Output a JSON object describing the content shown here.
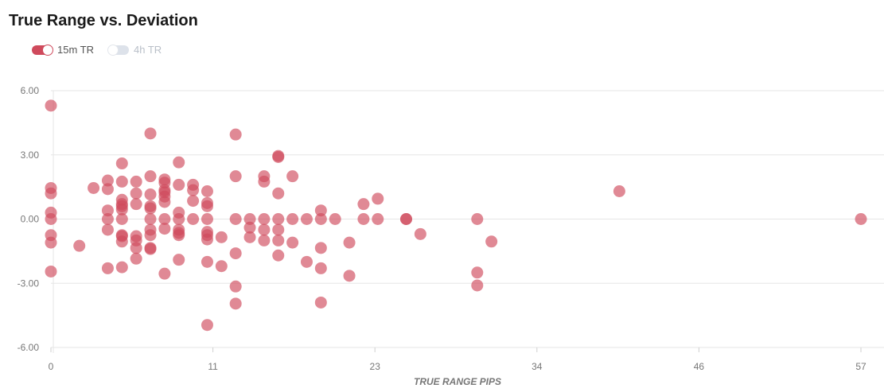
{
  "chart_data": {
    "type": "scatter",
    "title": "True Range vs. Deviation",
    "xlabel": "TRUE RANGE PIPS",
    "ylabel": "",
    "xlim": [
      0,
      57
    ],
    "ylim": [
      -6,
      6
    ],
    "x_ticks": [
      "0",
      "11",
      "23",
      "34",
      "46",
      "57"
    ],
    "x_tick_values": [
      0,
      11.4,
      22.8,
      34.2,
      45.6,
      57
    ],
    "y_ticks": [
      "6.00",
      "3.00",
      "0.00",
      "-3.00",
      "-6.00"
    ],
    "y_tick_values": [
      6,
      3,
      0,
      -3,
      -6
    ],
    "grid": true,
    "legend_position": "top-left",
    "colors": {
      "series_on": "#cf4a5c",
      "series_off": "#dde2ea",
      "grid": "#e6e6e6"
    },
    "series": [
      {
        "name": "15m TR",
        "enabled": true,
        "points": [
          [
            0,
            5.3
          ],
          [
            0,
            1.45
          ],
          [
            0,
            1.2
          ],
          [
            0,
            0.3
          ],
          [
            0,
            0
          ],
          [
            0,
            -0.75
          ],
          [
            0,
            -1.1
          ],
          [
            0,
            -2.45
          ],
          [
            2,
            -1.25
          ],
          [
            3,
            1.45
          ],
          [
            4,
            1.8
          ],
          [
            4,
            1.4
          ],
          [
            4,
            0.4
          ],
          [
            4,
            0
          ],
          [
            4,
            -0.5
          ],
          [
            4,
            -2.3
          ],
          [
            5,
            2.6
          ],
          [
            5,
            1.75
          ],
          [
            5,
            0.9
          ],
          [
            5,
            0.7
          ],
          [
            5,
            0.6
          ],
          [
            5,
            0.45
          ],
          [
            5,
            0
          ],
          [
            5,
            -0.75
          ],
          [
            5,
            -0.8
          ],
          [
            5,
            -1.05
          ],
          [
            5,
            -2.25
          ],
          [
            6,
            1.75
          ],
          [
            6,
            1.2
          ],
          [
            6,
            0.7
          ],
          [
            6,
            -0.8
          ],
          [
            6,
            -1.0
          ],
          [
            6,
            -1.35
          ],
          [
            6,
            -1.85
          ],
          [
            7,
            4.0
          ],
          [
            7,
            2.0
          ],
          [
            7,
            1.15
          ],
          [
            7,
            0.6
          ],
          [
            7,
            0.5
          ],
          [
            7,
            0
          ],
          [
            7,
            -0.5
          ],
          [
            7,
            -0.75
          ],
          [
            7,
            -1.35
          ],
          [
            7,
            -1.4
          ],
          [
            8,
            1.85
          ],
          [
            8,
            1.7
          ],
          [
            8,
            1.35
          ],
          [
            8,
            1.25
          ],
          [
            8,
            1.05
          ],
          [
            8,
            0.8
          ],
          [
            8,
            0
          ],
          [
            8,
            -0.45
          ],
          [
            8,
            -2.55
          ],
          [
            9,
            2.65
          ],
          [
            9,
            1.6
          ],
          [
            9,
            0.3
          ],
          [
            9,
            0
          ],
          [
            9,
            -0.5
          ],
          [
            9,
            -0.65
          ],
          [
            9,
            -0.75
          ],
          [
            9,
            -1.9
          ],
          [
            10,
            1.6
          ],
          [
            10,
            1.35
          ],
          [
            10,
            0.85
          ],
          [
            10,
            0
          ],
          [
            11,
            1.3
          ],
          [
            11,
            0.75
          ],
          [
            11,
            0.6
          ],
          [
            11,
            0
          ],
          [
            11,
            -0.6
          ],
          [
            11,
            -0.75
          ],
          [
            11,
            -0.95
          ],
          [
            11,
            -2.0
          ],
          [
            11,
            -4.95
          ],
          [
            12,
            -0.85
          ],
          [
            12,
            -2.2
          ],
          [
            13,
            3.95
          ],
          [
            13,
            2.0
          ],
          [
            13,
            0
          ],
          [
            13,
            -1.6
          ],
          [
            13,
            -3.15
          ],
          [
            13,
            -3.95
          ],
          [
            14,
            0
          ],
          [
            14,
            -0.4
          ],
          [
            14,
            -0.85
          ],
          [
            15,
            2.0
          ],
          [
            15,
            1.75
          ],
          [
            15,
            0
          ],
          [
            15,
            -0.5
          ],
          [
            15,
            -1.0
          ],
          [
            16,
            2.9
          ],
          [
            16,
            2.95
          ],
          [
            16,
            1.2
          ],
          [
            16,
            0
          ],
          [
            16,
            -0.5
          ],
          [
            16,
            -1.0
          ],
          [
            16,
            -1.7
          ],
          [
            17,
            2.0
          ],
          [
            17,
            0
          ],
          [
            17,
            -1.1
          ],
          [
            18,
            0
          ],
          [
            18,
            -2.0
          ],
          [
            19,
            0.4
          ],
          [
            19,
            0
          ],
          [
            19,
            -1.35
          ],
          [
            19,
            -2.3
          ],
          [
            19,
            -3.9
          ],
          [
            20,
            0
          ],
          [
            21,
            -1.1
          ],
          [
            21,
            -2.65
          ],
          [
            22,
            0.7
          ],
          [
            22,
            0
          ],
          [
            23,
            0.95
          ],
          [
            23,
            0
          ],
          [
            25,
            0
          ],
          [
            25,
            0
          ],
          [
            26,
            -0.7
          ],
          [
            30,
            0
          ],
          [
            30,
            -2.5
          ],
          [
            30,
            -3.1
          ],
          [
            31,
            -1.05
          ],
          [
            40,
            1.3
          ],
          [
            57,
            0
          ]
        ]
      },
      {
        "name": "4h TR",
        "enabled": false,
        "points": []
      }
    ]
  }
}
